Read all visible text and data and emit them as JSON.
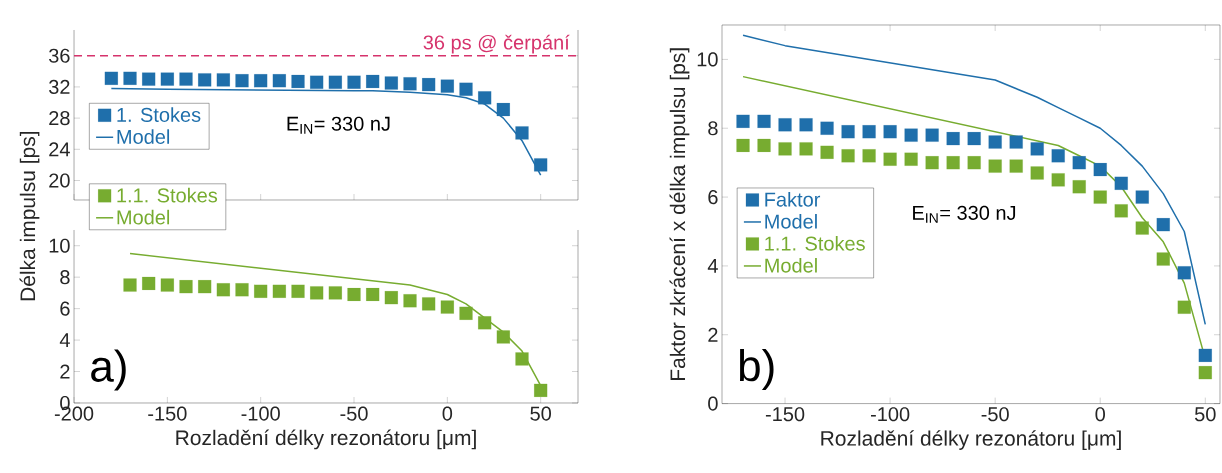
{
  "chart_data": [
    {
      "type": "scatter",
      "ylim": [
        17.5,
        39.3
      ],
      "yticks": [
        20,
        24,
        28,
        32,
        36
      ],
      "xlim": [
        -200,
        70
      ],
      "xticks": [
        -200,
        -150,
        -100,
        -50,
        0,
        50
      ],
      "tick_labels": "y",
      "legend": "left",
      "ref_lines": [
        {
          "axis": "y",
          "value": 36,
          "label": "36 ps @ čerpání",
          "color": "#d6336c",
          "line_style": "dashed"
        }
      ],
      "annotations": [
        "E$_{IN}$= 330 nJ"
      ],
      "series": [
        {
          "name": "1. Stokes",
          "color": "#1f6fab",
          "marker": "square",
          "x": [
            -180,
            -170,
            -160,
            -150,
            -140,
            -130,
            -120,
            -110,
            -100,
            -90,
            -80,
            -70,
            -60,
            -50,
            -40,
            -30,
            -20,
            -10,
            0,
            10,
            20,
            30,
            40,
            50
          ],
          "values": [
            33.1,
            33.1,
            33.0,
            33.0,
            33.0,
            32.9,
            32.9,
            32.8,
            32.8,
            32.8,
            32.7,
            32.6,
            32.6,
            32.6,
            32.7,
            32.5,
            32.4,
            32.3,
            32.1,
            31.7,
            30.6,
            29.1,
            26.1,
            22.0
          ]
        },
        {
          "name": "Model",
          "color": "#1f6fab",
          "type": "line",
          "x": [
            -180,
            -150,
            -100,
            -50,
            -40,
            -20,
            0,
            10,
            20,
            30,
            40,
            50
          ],
          "values": [
            31.8,
            31.7,
            31.6,
            31.5,
            31.5,
            31.3,
            31.0,
            30.6,
            29.8,
            28.0,
            25.1,
            20.7
          ]
        }
      ]
    },
    {
      "type": "scatter",
      "ylim": [
        0,
        11
      ],
      "yticks": [
        0,
        2,
        4,
        6,
        8,
        10
      ],
      "xlim": [
        -200,
        70
      ],
      "xticks": [
        -200,
        -150,
        -100,
        -50,
        0,
        50
      ],
      "legend": "top left",
      "xlabel": "Rozladění délky rezonátoru [μm]",
      "ylabel": "Délka impulsu [ps]",
      "annotations": [
        "a)"
      ],
      "series": [
        {
          "name": "1.1. Stokes",
          "color": "#77ac30",
          "marker": "square",
          "x": [
            -170,
            -160,
            -150,
            -140,
            -130,
            -120,
            -110,
            -100,
            -90,
            -80,
            -70,
            -60,
            -50,
            -40,
            -30,
            -20,
            -10,
            0,
            10,
            20,
            30,
            40,
            50
          ],
          "values": [
            7.5,
            7.6,
            7.5,
            7.4,
            7.4,
            7.2,
            7.2,
            7.1,
            7.1,
            7.1,
            7.0,
            7.0,
            6.9,
            6.9,
            6.7,
            6.5,
            6.3,
            6.1,
            5.7,
            5.1,
            4.2,
            2.8,
            0.8
          ]
        },
        {
          "name": "Model",
          "color": "#77ac30",
          "type": "line",
          "x": [
            -170,
            -20,
            -10,
            0,
            10,
            20,
            30,
            40,
            50
          ],
          "values": [
            9.5,
            7.5,
            7.2,
            6.9,
            6.3,
            5.4,
            4.5,
            3.3,
            1.1
          ]
        }
      ]
    },
    {
      "type": "scatter",
      "ylim": [
        0,
        11
      ],
      "yticks": [
        0,
        2,
        4,
        6,
        8,
        10
      ],
      "xlim": [
        -180,
        57
      ],
      "xticks": [
        -150,
        -100,
        -50,
        0,
        50
      ],
      "legend": "left",
      "xlabel": "Rozladění délky rezonátoru [μm]",
      "ylabel": "Faktor zkrácení x délka impulsu [ps]",
      "annotations": [
        "E$_{IN}$= 330 nJ",
        "b)"
      ],
      "series": [
        {
          "name": "Faktor",
          "color": "#1f6fab",
          "marker": "square",
          "x": [
            -170,
            -160,
            -150,
            -140,
            -130,
            -120,
            -110,
            -100,
            -90,
            -80,
            -70,
            -60,
            -50,
            -40,
            -30,
            -20,
            -10,
            0,
            10,
            20,
            30,
            40,
            50
          ],
          "values": [
            8.2,
            8.2,
            8.1,
            8.1,
            8.0,
            7.9,
            7.9,
            7.9,
            7.8,
            7.8,
            7.7,
            7.7,
            7.6,
            7.6,
            7.4,
            7.2,
            7.0,
            6.8,
            6.4,
            6.0,
            5.2,
            3.8,
            1.4
          ]
        },
        {
          "name": "Model",
          "color": "#1f6fab",
          "type": "line",
          "x": [
            -170,
            -150,
            -100,
            -50,
            -30,
            -20,
            -10,
            0,
            10,
            20,
            30,
            40,
            50
          ],
          "values": [
            10.7,
            10.4,
            9.9,
            9.4,
            8.9,
            8.6,
            8.3,
            8.0,
            7.5,
            6.9,
            6.1,
            5.0,
            2.3
          ]
        },
        {
          "name": "1.1. Stokes",
          "color": "#77ac30",
          "marker": "square",
          "x": [
            -170,
            -160,
            -150,
            -140,
            -130,
            -120,
            -110,
            -100,
            -90,
            -80,
            -70,
            -60,
            -50,
            -40,
            -30,
            -20,
            -10,
            0,
            10,
            20,
            30,
            40,
            50
          ],
          "values": [
            7.5,
            7.5,
            7.4,
            7.4,
            7.3,
            7.2,
            7.2,
            7.1,
            7.1,
            7.0,
            7.0,
            7.0,
            6.9,
            6.9,
            6.7,
            6.5,
            6.3,
            6.0,
            5.6,
            5.1,
            4.2,
            2.8,
            0.9
          ]
        },
        {
          "name": "Model",
          "color": "#77ac30",
          "type": "line",
          "x": [
            -170,
            -20,
            -10,
            0,
            10,
            20,
            30,
            40,
            50
          ],
          "values": [
            9.5,
            7.5,
            7.2,
            6.9,
            6.3,
            5.4,
            4.7,
            3.5,
            1.3
          ]
        }
      ]
    }
  ]
}
